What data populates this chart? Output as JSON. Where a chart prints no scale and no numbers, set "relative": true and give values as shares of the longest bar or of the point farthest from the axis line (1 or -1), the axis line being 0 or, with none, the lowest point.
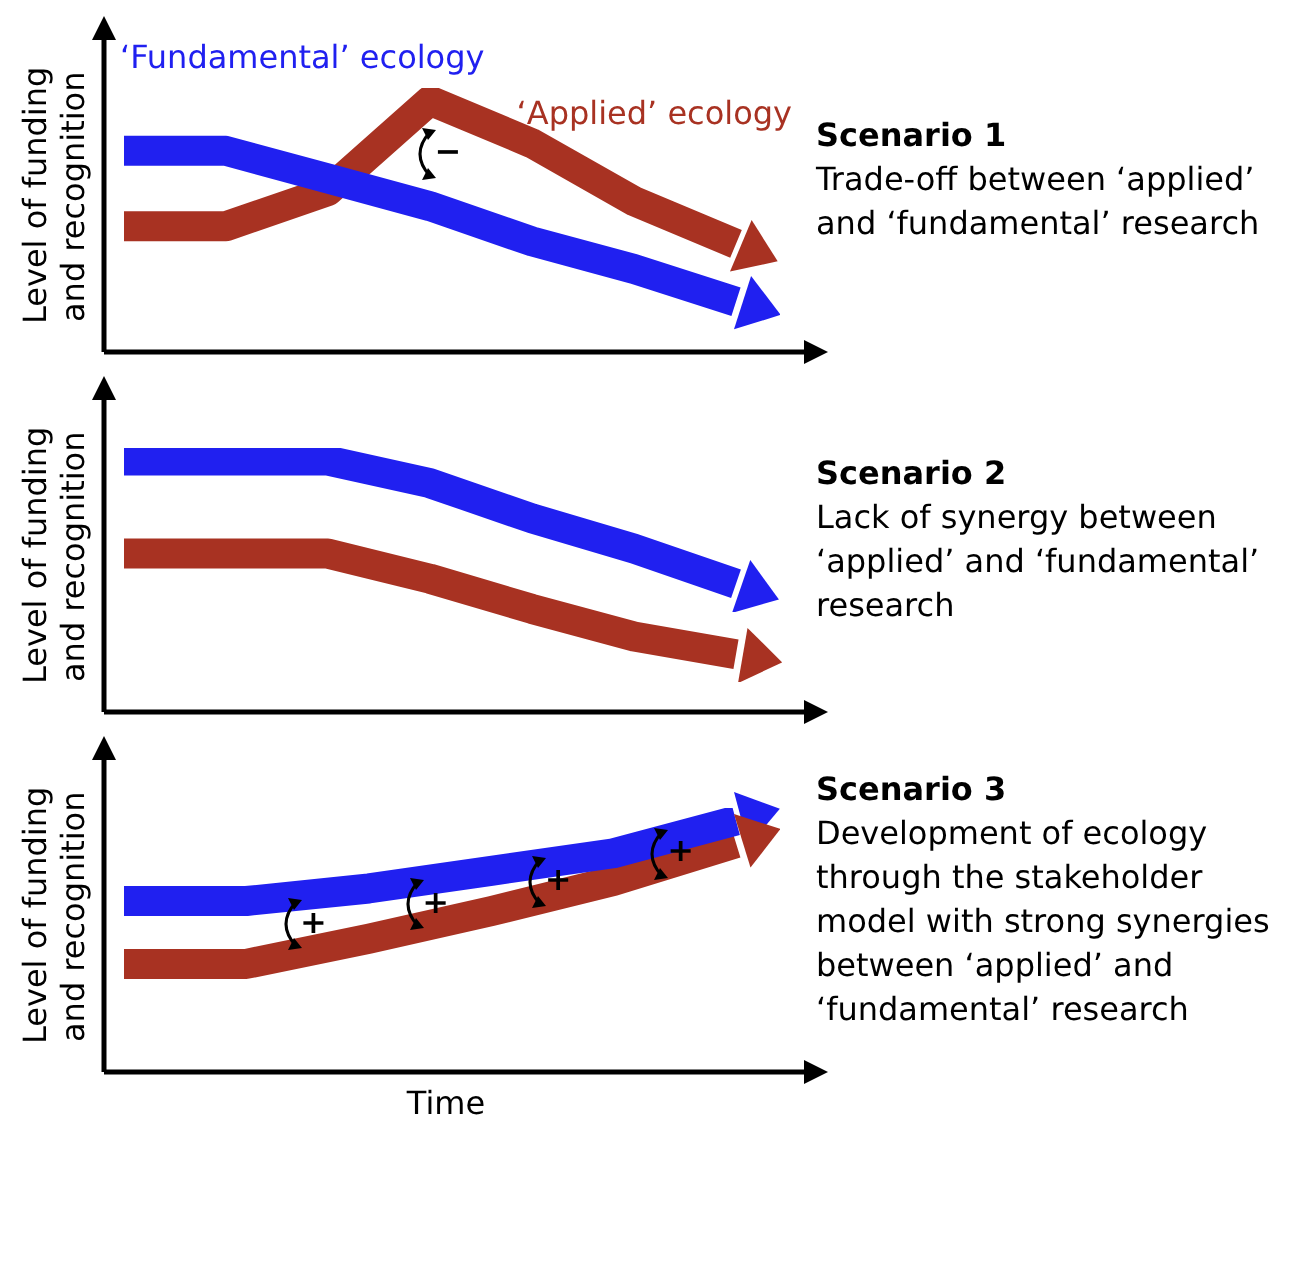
{
  "chart_data": [
    {
      "type": "line",
      "title": "Scenario 1",
      "subtitle": "Trade-off between ‘applied’ and ‘fundamental’ research",
      "ylabel": "Level of funding and recognition",
      "categories": [
        null,
        null,
        null,
        null,
        null,
        null,
        null
      ],
      "relative": true,
      "annotations": [
        "−"
      ],
      "series": [
        {
          "name": "‘Fundamental’ ecology",
          "color": "#2020f0",
          "values": [
            0.8,
            0.8,
            0.69,
            0.58,
            0.44,
            0.33,
            0.2
          ]
        },
        {
          "name": "‘Applied’ ecology",
          "color": "#a83222",
          "values": [
            0.5,
            0.5,
            0.64,
            1,
            0.83,
            0.6,
            0.43
          ]
        }
      ]
    },
    {
      "type": "line",
      "title": "Scenario 2",
      "subtitle": "Lack of synergy between ‘applied’ and ‘fundamental’ research",
      "ylabel": "Level of funding and recognition",
      "categories": [
        null,
        null,
        null,
        null,
        null,
        null,
        null
      ],
      "relative": true,
      "series": [
        {
          "color": "#2020f0",
          "values": [
            1,
            1,
            1,
            0.91,
            0.77,
            0.65,
            0.51
          ]
        },
        {
          "color": "#a83222",
          "values": [
            0.63,
            0.63,
            0.63,
            0.53,
            0.41,
            0.3,
            0.23
          ]
        }
      ]
    },
    {
      "type": "line",
      "title": "Scenario 3",
      "subtitle": "Development of ecology through the stakeholder model with strong synergies between ‘applied’ and ‘fundamental’ research",
      "ylabel": "Level of funding and recognition",
      "xlabel": "Time",
      "categories": [
        null,
        null,
        null,
        null,
        null,
        null
      ],
      "relative": true,
      "annotations": [
        "+",
        "+",
        "+",
        "+"
      ],
      "series": [
        {
          "color": "#2020f0",
          "values": [
            0.68,
            0.68,
            0.73,
            0.8,
            0.87,
            1
          ]
        },
        {
          "color": "#a83222",
          "values": [
            0.43,
            0.43,
            0.53,
            0.64,
            0.76,
            0.91
          ]
        }
      ]
    }
  ]
}
